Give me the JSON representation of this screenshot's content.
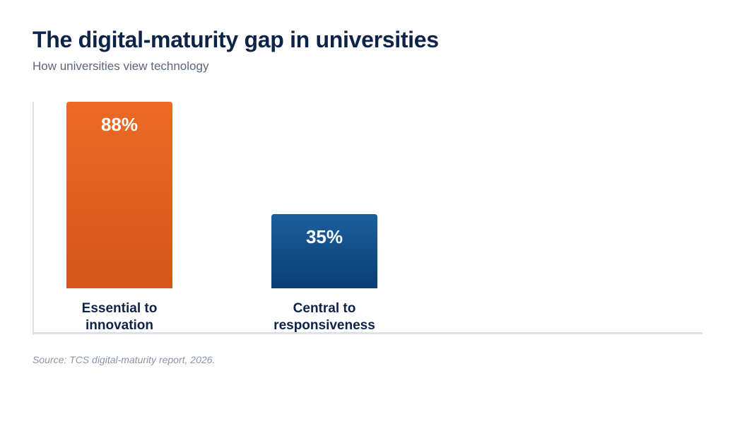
{
  "header": {
    "title": "The digital-maturity gap in universities",
    "subtitle": "How universities view technology"
  },
  "source": "Source: TCS digital-maturity report, 2026.",
  "colors": {
    "title": "#0d2347",
    "axis": "#dde1e8",
    "bar_orange_top": "#ec6a25",
    "bar_orange_bottom": "#d4561a",
    "bar_blue_top": "#1c5f9c",
    "bar_blue_bottom": "#0b3d73"
  },
  "chart_data": {
    "type": "bar",
    "categories": [
      [
        "Essential to",
        "innovation"
      ],
      [
        "Central to",
        "responsiveness"
      ]
    ],
    "values": [
      88,
      35
    ],
    "value_labels": [
      "88%",
      "35%"
    ],
    "bar_colors": [
      "orange",
      "blue"
    ],
    "ylim": [
      0,
      88
    ],
    "grid": false,
    "legend": "none"
  }
}
